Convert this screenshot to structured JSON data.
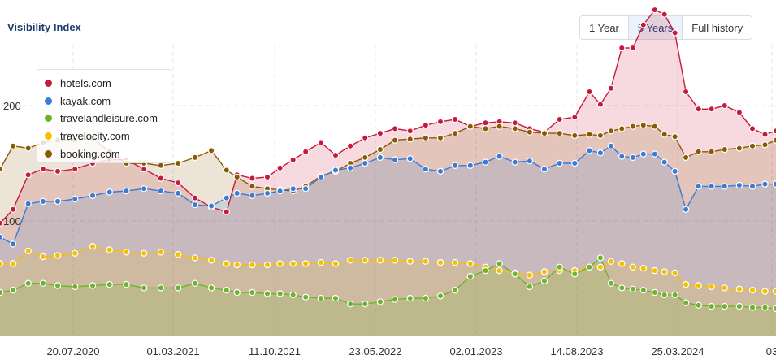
{
  "header": {
    "title": "Visibility Index"
  },
  "range": {
    "options": [
      "1 Year",
      "5 Years",
      "Full history"
    ],
    "active": 1
  },
  "colors": {
    "hotels.com": "#c8193c",
    "kayak.com": "#3a7bd5",
    "travelandleisure.com": "#6cb42a",
    "travelocity.com": "#f5c000",
    "booking.com": "#8b5a00"
  },
  "chart_data": {
    "type": "area",
    "title": "Visibility Index",
    "xlabel": "",
    "ylabel": "",
    "xlim": [
      "2019-12-25",
      "2025-01-10"
    ],
    "ylim": [
      0,
      300
    ],
    "y_ticks": [
      100,
      200
    ],
    "x_tick_labels": [
      "20.07.2020",
      "01.03.2021",
      "11.10.2021",
      "23.05.2022",
      "02.01.2023",
      "14.08.2023",
      "25.03.2024",
      "03"
    ],
    "grid": true,
    "legend_position": "top-left",
    "series": [
      {
        "name": "hotels.com",
        "x": [
          "2019-12-25",
          "2020-01-25",
          "2020-03-01",
          "2020-04-05",
          "2020-05-10",
          "2020-06-20",
          "2020-08-01",
          "2020-09-10",
          "2020-10-20",
          "2020-12-01",
          "2021-01-10",
          "2021-02-20",
          "2021-04-01",
          "2021-05-10",
          "2021-06-15",
          "2021-07-10",
          "2021-08-15",
          "2021-09-20",
          "2021-10-20",
          "2021-11-20",
          "2021-12-20",
          "2022-01-25",
          "2022-03-01",
          "2022-04-05",
          "2022-05-10",
          "2022-06-15",
          "2022-07-20",
          "2022-08-25",
          "2022-10-01",
          "2022-11-05",
          "2022-12-10",
          "2023-01-15",
          "2023-02-20",
          "2023-03-25",
          "2023-05-01",
          "2023-06-05",
          "2023-07-10",
          "2023-08-15",
          "2023-09-20",
          "2023-10-25",
          "2023-11-20",
          "2023-12-15",
          "2024-01-10",
          "2024-02-05",
          "2024-03-01",
          "2024-03-28",
          "2024-04-20",
          "2024-05-15",
          "2024-06-10",
          "2024-07-10",
          "2024-08-10",
          "2024-09-10",
          "2024-10-15",
          "2024-11-15",
          "2024-12-15",
          "2025-01-10"
        ],
        "values": [
          98,
          110,
          140,
          145,
          143,
          145,
          150,
          153,
          153,
          145,
          137,
          133,
          120,
          112,
          108,
          140,
          137,
          138,
          146,
          153,
          160,
          168,
          157,
          165,
          172,
          176,
          180,
          178,
          183,
          186,
          188,
          182,
          185,
          186,
          185,
          180,
          177,
          188,
          190,
          212,
          201,
          215,
          250,
          250,
          270,
          283,
          279,
          263,
          212,
          197,
          197,
          200,
          194,
          180,
          175,
          178
        ]
      },
      {
        "name": "kayak.com",
        "x": [
          "2019-12-25",
          "2020-01-25",
          "2020-03-01",
          "2020-04-05",
          "2020-05-10",
          "2020-06-20",
          "2020-08-01",
          "2020-09-10",
          "2020-10-20",
          "2020-12-01",
          "2021-01-10",
          "2021-02-20",
          "2021-04-01",
          "2021-05-10",
          "2021-06-15",
          "2021-07-10",
          "2021-08-15",
          "2021-09-20",
          "2021-10-20",
          "2021-11-20",
          "2021-12-20",
          "2022-01-25",
          "2022-03-01",
          "2022-04-05",
          "2022-05-10",
          "2022-06-15",
          "2022-07-20",
          "2022-08-25",
          "2022-10-01",
          "2022-11-05",
          "2022-12-10",
          "2023-01-15",
          "2023-02-20",
          "2023-03-25",
          "2023-05-01",
          "2023-06-05",
          "2023-07-10",
          "2023-08-15",
          "2023-09-20",
          "2023-10-25",
          "2023-11-20",
          "2023-12-15",
          "2024-01-10",
          "2024-02-05",
          "2024-03-01",
          "2024-03-28",
          "2024-04-20",
          "2024-05-15",
          "2024-06-10",
          "2024-07-10",
          "2024-08-10",
          "2024-09-10",
          "2024-10-15",
          "2024-11-15",
          "2024-12-15",
          "2025-01-10"
        ],
        "values": [
          86,
          80,
          115,
          117,
          117,
          119,
          122,
          125,
          126,
          128,
          126,
          124,
          114,
          113,
          120,
          124,
          122,
          124,
          126,
          128,
          128,
          138,
          144,
          146,
          150,
          155,
          153,
          154,
          145,
          143,
          148,
          148,
          151,
          156,
          151,
          152,
          145,
          150,
          150,
          161,
          159,
          165,
          156,
          155,
          158,
          158,
          151,
          143,
          110,
          130,
          130,
          130,
          131,
          130,
          132,
          132
        ]
      },
      {
        "name": "travelandleisure.com",
        "x": [
          "2019-12-25",
          "2020-01-25",
          "2020-03-01",
          "2020-04-05",
          "2020-05-10",
          "2020-06-20",
          "2020-08-01",
          "2020-09-10",
          "2020-10-20",
          "2020-12-01",
          "2021-01-10",
          "2021-02-20",
          "2021-04-01",
          "2021-05-10",
          "2021-06-15",
          "2021-07-10",
          "2021-08-15",
          "2021-09-20",
          "2021-10-20",
          "2021-11-20",
          "2021-12-20",
          "2022-01-25",
          "2022-03-01",
          "2022-04-05",
          "2022-05-10",
          "2022-06-15",
          "2022-07-20",
          "2022-08-25",
          "2022-10-01",
          "2022-11-05",
          "2022-12-10",
          "2023-01-15",
          "2023-02-20",
          "2023-03-25",
          "2023-05-01",
          "2023-06-05",
          "2023-07-10",
          "2023-08-15",
          "2023-09-20",
          "2023-10-25",
          "2023-11-20",
          "2023-12-15",
          "2024-01-10",
          "2024-02-05",
          "2024-03-01",
          "2024-03-28",
          "2024-04-20",
          "2024-05-15",
          "2024-06-10",
          "2024-07-10",
          "2024-08-10",
          "2024-09-10",
          "2024-10-15",
          "2024-11-15",
          "2024-12-15",
          "2025-01-10"
        ],
        "values": [
          38,
          40,
          46,
          46,
          44,
          43,
          44,
          45,
          45,
          42,
          42,
          42,
          46,
          42,
          40,
          38,
          38,
          37,
          37,
          36,
          34,
          33,
          33,
          28,
          28,
          30,
          32,
          33,
          33,
          35,
          40,
          52,
          57,
          63,
          54,
          43,
          48,
          60,
          54,
          60,
          68,
          46,
          42,
          41,
          40,
          38,
          36,
          36,
          29,
          27,
          26,
          26,
          26,
          25,
          25,
          24
        ]
      },
      {
        "name": "travelocity.com",
        "x": [
          "2019-12-25",
          "2020-01-25",
          "2020-03-01",
          "2020-04-05",
          "2020-05-10",
          "2020-06-20",
          "2020-08-01",
          "2020-09-10",
          "2020-10-20",
          "2020-12-01",
          "2021-01-10",
          "2021-02-20",
          "2021-04-01",
          "2021-05-10",
          "2021-06-15",
          "2021-07-10",
          "2021-08-15",
          "2021-09-20",
          "2021-10-20",
          "2021-11-20",
          "2021-12-20",
          "2022-01-25",
          "2022-03-01",
          "2022-04-05",
          "2022-05-10",
          "2022-06-15",
          "2022-07-20",
          "2022-08-25",
          "2022-10-01",
          "2022-11-05",
          "2022-12-10",
          "2023-01-15",
          "2023-02-20",
          "2023-03-25",
          "2023-05-01",
          "2023-06-05",
          "2023-07-10",
          "2023-08-15",
          "2023-09-20",
          "2023-10-25",
          "2023-11-20",
          "2023-12-15",
          "2024-01-10",
          "2024-02-05",
          "2024-03-01",
          "2024-03-28",
          "2024-04-20",
          "2024-05-15",
          "2024-06-10",
          "2024-07-10",
          "2024-08-10",
          "2024-09-10",
          "2024-10-15",
          "2024-11-15",
          "2024-12-15",
          "2025-01-10"
        ],
        "values": [
          63,
          63,
          74,
          69,
          70,
          72,
          78,
          75,
          73,
          72,
          73,
          71,
          68,
          66,
          63,
          62,
          62,
          62,
          63,
          63,
          63,
          64,
          63,
          66,
          66,
          66,
          66,
          65,
          65,
          64,
          64,
          63,
          60,
          57,
          55,
          53,
          56,
          57,
          57,
          60,
          60,
          65,
          63,
          60,
          59,
          57,
          56,
          55,
          45,
          44,
          43,
          42,
          41,
          40,
          39,
          39
        ]
      },
      {
        "name": "booking.com",
        "x": [
          "2019-12-25",
          "2020-01-25",
          "2020-03-01",
          "2020-04-05",
          "2020-05-10",
          "2020-06-20",
          "2020-08-01",
          "2020-09-10",
          "2020-10-20",
          "2020-12-01",
          "2021-01-10",
          "2021-02-20",
          "2021-04-01",
          "2021-05-10",
          "2021-06-15",
          "2021-07-10",
          "2021-08-15",
          "2021-09-20",
          "2021-10-20",
          "2021-11-20",
          "2021-12-20",
          "2022-01-25",
          "2022-03-01",
          "2022-04-05",
          "2022-05-10",
          "2022-06-15",
          "2022-07-20",
          "2022-08-25",
          "2022-10-01",
          "2022-11-05",
          "2022-12-10",
          "2023-01-15",
          "2023-02-20",
          "2023-03-25",
          "2023-05-01",
          "2023-06-05",
          "2023-07-10",
          "2023-08-15",
          "2023-09-20",
          "2023-10-25",
          "2023-11-20",
          "2023-12-15",
          "2024-01-10",
          "2024-02-05",
          "2024-03-01",
          "2024-03-28",
          "2024-04-20",
          "2024-05-15",
          "2024-06-10",
          "2024-07-10",
          "2024-08-10",
          "2024-09-10",
          "2024-10-15",
          "2024-11-15",
          "2024-12-15",
          "2025-01-10"
        ],
        "values": [
          145,
          165,
          163,
          168,
          170,
          170,
          172,
          160,
          150,
          150,
          148,
          150,
          155,
          161,
          144,
          138,
          130,
          128,
          127,
          126,
          130,
          139,
          143,
          150,
          155,
          162,
          170,
          171,
          172,
          172,
          176,
          182,
          180,
          182,
          180,
          177,
          176,
          176,
          174,
          175,
          174,
          178,
          180,
          182,
          183,
          182,
          175,
          173,
          155,
          160,
          160,
          162,
          163,
          165,
          166,
          170
        ]
      }
    ]
  }
}
